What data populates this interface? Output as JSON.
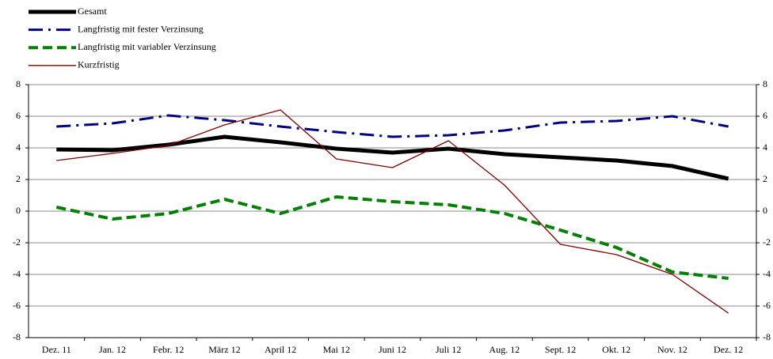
{
  "chart_data": {
    "type": "line",
    "categories": [
      "Dez. 11",
      "Jan. 12",
      "Febr. 12",
      "März 12",
      "April 12",
      "Mai 12",
      "Juni 12",
      "Juli 12",
      "Aug. 12",
      "Sept. 12",
      "Okt. 12",
      "Nov. 12",
      "Dez. 12"
    ],
    "series": [
      {
        "name": "Gesamt",
        "color": "#000000",
        "values": [
          3.9,
          3.85,
          4.2,
          4.7,
          4.35,
          3.95,
          3.7,
          3.95,
          3.6,
          3.4,
          3.2,
          2.85,
          2.05
        ]
      },
      {
        "name": "Langfristig mit fester Verzinsung",
        "color": "#000080",
        "values": [
          5.35,
          5.55,
          6.05,
          5.75,
          5.35,
          5.0,
          4.7,
          4.8,
          5.1,
          5.6,
          5.7,
          6.0,
          5.35
        ]
      },
      {
        "name": "Langfristig mit variabler Verzinsung",
        "color": "#008000",
        "values": [
          0.25,
          -0.5,
          -0.15,
          0.75,
          -0.15,
          0.9,
          0.6,
          0.4,
          -0.15,
          -1.2,
          -2.3,
          -3.85,
          -4.25
        ]
      },
      {
        "name": "Kurzfristig",
        "color": "#800000",
        "values": [
          3.2,
          3.65,
          4.15,
          5.45,
          6.4,
          3.3,
          2.75,
          4.45,
          1.65,
          -2.1,
          -2.75,
          -4.0,
          -6.45
        ]
      }
    ],
    "ylim": [
      -8,
      8
    ],
    "yticks": [
      -8,
      -6,
      -4,
      -2,
      0,
      2,
      4,
      6,
      8
    ],
    "y2lim": [
      -8,
      8
    ],
    "y2ticks": [
      -8,
      -6,
      -4,
      -2,
      0,
      2,
      4,
      6,
      8
    ],
    "grid": true,
    "legend": "top-left"
  }
}
